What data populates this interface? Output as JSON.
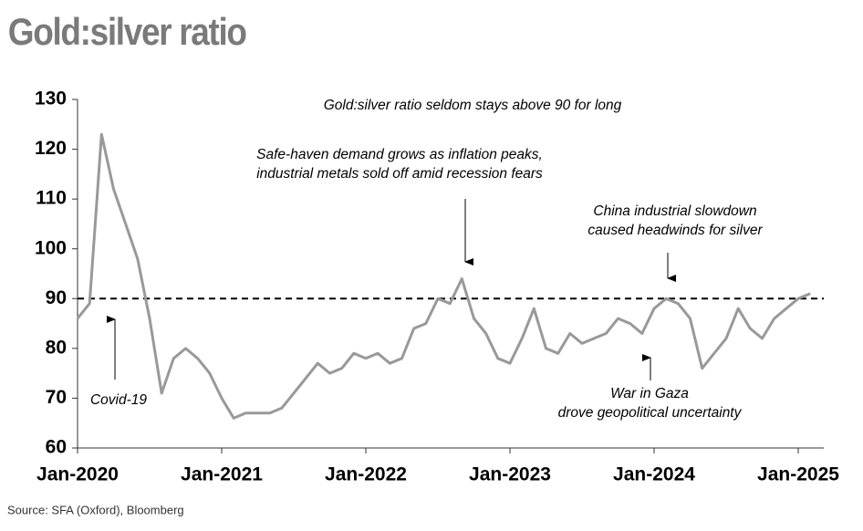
{
  "chart_data": {
    "type": "line",
    "title": "Gold:silver ratio",
    "source": "Source: SFA (Oxford), Bloomberg",
    "x": [
      "2020-01",
      "2020-02",
      "2020-03",
      "2020-04",
      "2020-05",
      "2020-06",
      "2020-07",
      "2020-08",
      "2020-09",
      "2020-10",
      "2020-11",
      "2020-12",
      "2021-01",
      "2021-02",
      "2021-03",
      "2021-04",
      "2021-05",
      "2021-06",
      "2021-07",
      "2021-08",
      "2021-09",
      "2021-10",
      "2021-11",
      "2021-12",
      "2022-01",
      "2022-02",
      "2022-03",
      "2022-04",
      "2022-05",
      "2022-06",
      "2022-07",
      "2022-08",
      "2022-09",
      "2022-10",
      "2022-11",
      "2022-12",
      "2023-01",
      "2023-02",
      "2023-03",
      "2023-04",
      "2023-05",
      "2023-06",
      "2023-07",
      "2023-08",
      "2023-09",
      "2023-10",
      "2023-11",
      "2023-12",
      "2024-01",
      "2024-02",
      "2024-03",
      "2024-04",
      "2024-05",
      "2024-06",
      "2024-07",
      "2024-08",
      "2024-09",
      "2024-10",
      "2024-11",
      "2024-12",
      "2025-01",
      "2025-02"
    ],
    "series": [
      {
        "name": "Gold:silver ratio",
        "color": "#999999",
        "values": [
          86,
          89,
          123,
          112,
          105,
          98,
          86,
          71,
          78,
          80,
          78,
          75,
          70,
          66,
          67,
          67,
          67,
          68,
          71,
          74,
          77,
          75,
          76,
          79,
          78,
          79,
          77,
          78,
          84,
          85,
          90,
          89,
          94,
          86,
          83,
          78,
          77,
          82,
          88,
          80,
          79,
          83,
          81,
          82,
          83,
          86,
          85,
          83,
          88,
          90,
          89,
          86,
          76,
          79,
          82,
          88,
          84,
          82,
          86,
          88,
          90,
          91
        ]
      }
    ],
    "xlim": [
      "2020-01",
      "2025-02"
    ],
    "xticks": [
      {
        "value": "2020-01",
        "label": "Jan-2020"
      },
      {
        "value": "2021-01",
        "label": "Jan-2021"
      },
      {
        "value": "2022-01",
        "label": "Jan-2022"
      },
      {
        "value": "2023-01",
        "label": "Jan-2023"
      },
      {
        "value": "2024-01",
        "label": "Jan-2024"
      },
      {
        "value": "2025-01",
        "label": "Jan-2025"
      }
    ],
    "ylim": [
      60,
      130
    ],
    "yticks": [
      60,
      70,
      80,
      90,
      100,
      110,
      120,
      130
    ],
    "reference_line": 90,
    "annotations": [
      {
        "lines": [
          "Gold:silver ratio seldom stays above 90 for long"
        ]
      },
      {
        "lines": [
          "Safe-haven demand grows as inflation peaks,",
          "industrial metals sold off amid recession fears"
        ]
      },
      {
        "lines": [
          "China industrial slowdown",
          "caused headwinds for silver"
        ]
      },
      {
        "lines": [
          "War in Gaza",
          "drove geopolitical uncertainty"
        ]
      },
      {
        "lines": [
          "Covid-19"
        ]
      }
    ]
  }
}
